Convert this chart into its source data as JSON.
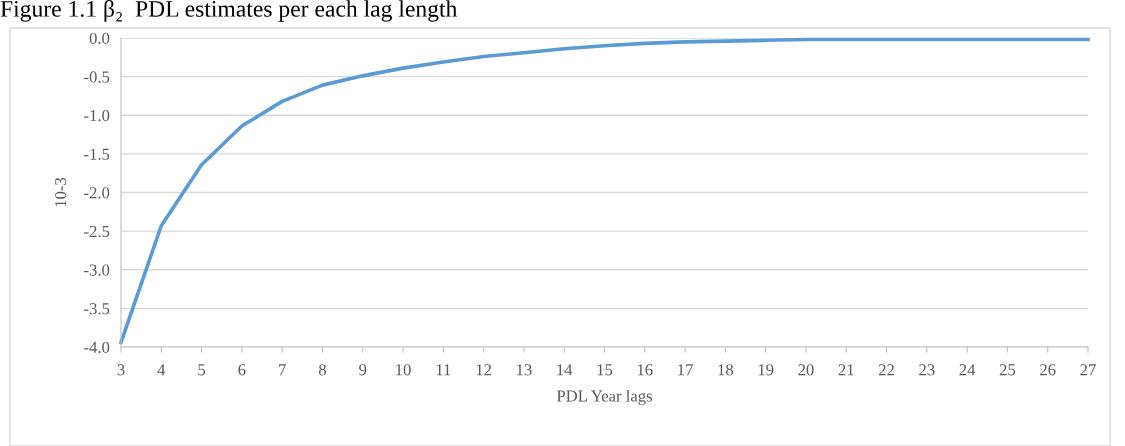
{
  "chart_data": {
    "type": "line",
    "title": "Figure 1.1 β₂  PDL estimates per each lag length",
    "xlabel": "PDL Year lags",
    "ylabel": "10-3",
    "x": [
      3,
      4,
      5,
      6,
      7,
      8,
      9,
      10,
      11,
      12,
      13,
      14,
      15,
      16,
      17,
      18,
      19,
      20,
      21,
      22,
      23,
      24,
      25,
      26,
      27
    ],
    "series": [
      {
        "color": "#5b9bd5",
        "values": [
          -3.94,
          -2.43,
          -1.64,
          -1.14,
          -0.82,
          -0.61,
          -0.49,
          -0.39,
          -0.31,
          -0.24,
          -0.19,
          -0.14,
          -0.1,
          -0.07,
          -0.05,
          -0.04,
          -0.03,
          -0.02,
          -0.02,
          -0.02,
          -0.02,
          -0.02,
          -0.02,
          -0.02,
          -0.02
        ]
      }
    ],
    "xlim": [
      3,
      27
    ],
    "xticks": [
      3,
      4,
      5,
      6,
      7,
      8,
      9,
      10,
      11,
      12,
      13,
      14,
      15,
      16,
      17,
      18,
      19,
      20,
      21,
      22,
      23,
      24,
      25,
      26,
      27
    ],
    "ylim": [
      -4.0,
      0.0
    ],
    "yticks": [
      {
        "value": -4.0,
        "label": "-4.0"
      },
      {
        "value": -3.5,
        "label": "-3.5"
      },
      {
        "value": -3.0,
        "label": "-3.0"
      },
      {
        "value": -2.5,
        "label": "-2.5"
      },
      {
        "value": -2.0,
        "label": "-2.0"
      },
      {
        "value": -1.5,
        "label": "-1.5"
      },
      {
        "value": -1.0,
        "label": "-1.0"
      },
      {
        "value": -0.5,
        "label": "-0.5"
      },
      {
        "value": 0.0,
        "label": "0.0"
      }
    ],
    "grid": "y",
    "marker": "none",
    "line_style": "solid"
  }
}
